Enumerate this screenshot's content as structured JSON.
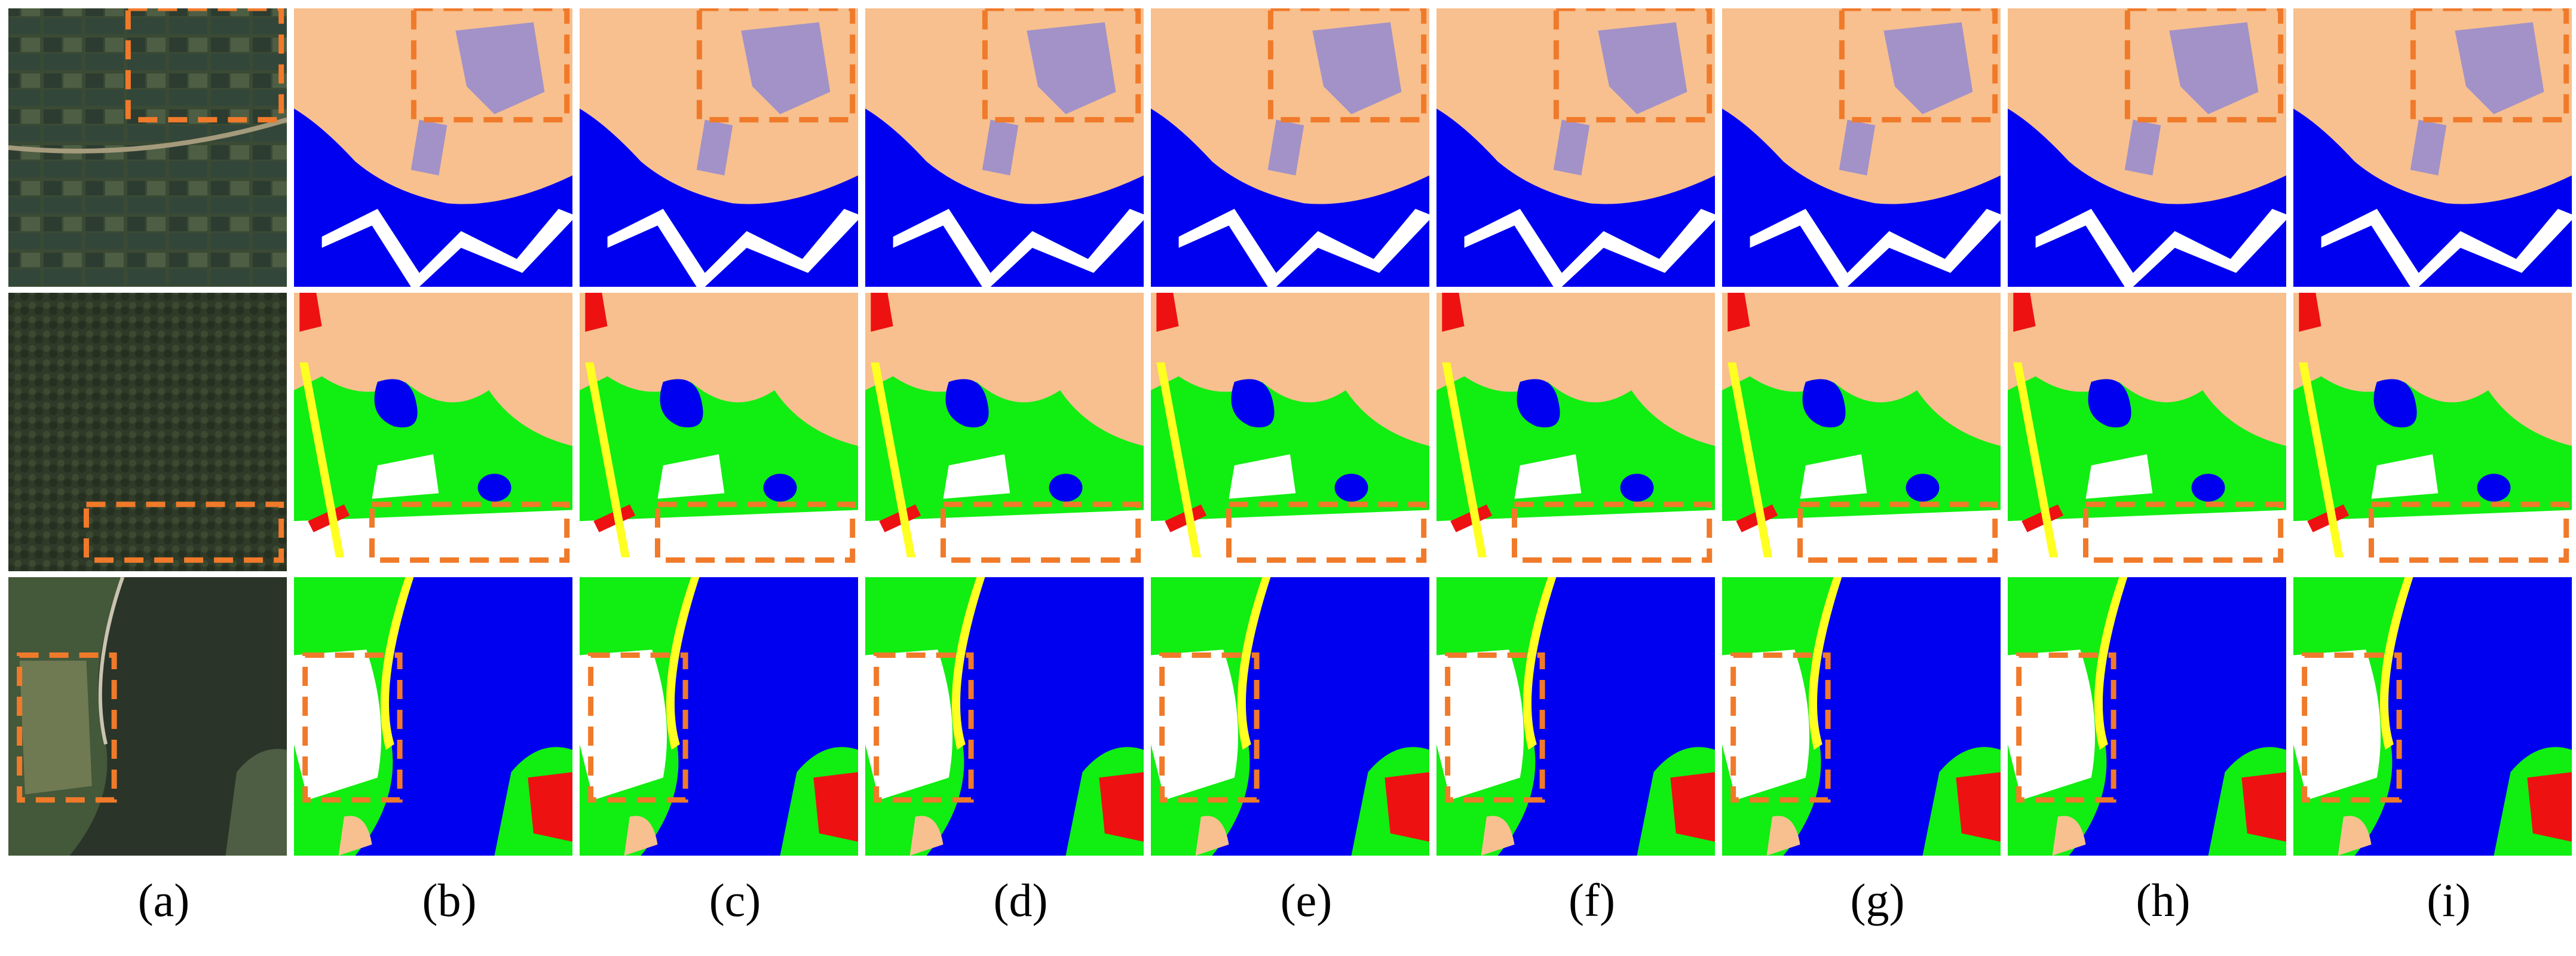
{
  "figure": {
    "columns": [
      {
        "id": "a",
        "label": "(a)",
        "kind": "satellite-image"
      },
      {
        "id": "b",
        "label": "(b)",
        "kind": "segmentation-map"
      },
      {
        "id": "c",
        "label": "(c)",
        "kind": "segmentation-map"
      },
      {
        "id": "d",
        "label": "(d)",
        "kind": "segmentation-map"
      },
      {
        "id": "e",
        "label": "(e)",
        "kind": "segmentation-map"
      },
      {
        "id": "f",
        "label": "(f)",
        "kind": "segmentation-map"
      },
      {
        "id": "g",
        "label": "(g)",
        "kind": "segmentation-map"
      },
      {
        "id": "h",
        "label": "(h)",
        "kind": "segmentation-map"
      },
      {
        "id": "i",
        "label": "(i)",
        "kind": "segmentation-map"
      }
    ],
    "rows": 3,
    "highlight_box_color": "#f07a2a",
    "class_colors": {
      "water": "#0000f0",
      "agriculture": "#f7c08e",
      "forest": "#11ee11",
      "building": "#ee1111",
      "barren": "#ffffff",
      "road": "#ffff22",
      "rangeland": "#a392c8"
    }
  }
}
